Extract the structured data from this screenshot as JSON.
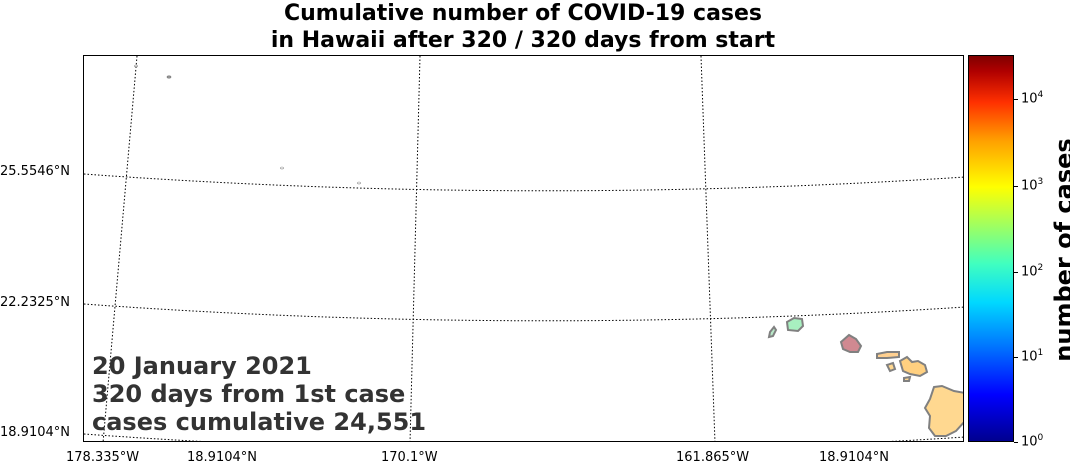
{
  "title": {
    "line1": "Cumulative number of COVID-19 cases",
    "line2": "in Hawaii after 320 / 320 days from start"
  },
  "overlay": {
    "date": "20 January 2021",
    "days": "320 days from 1st case",
    "cases": "cases cumulative 24,551"
  },
  "lat_labels": [
    "25.5546°N",
    "22.2325°N",
    "18.9104°N"
  ],
  "lon_labels": [
    "178.335°W",
    "18.9104°N",
    "170.1°W",
    "161.865°W",
    "18.9104°N"
  ],
  "colorbar": {
    "title": "number of cases",
    "ticks": [
      {
        "base": "10",
        "exp": "4"
      },
      {
        "base": "10",
        "exp": "3"
      },
      {
        "base": "10",
        "exp": "2"
      },
      {
        "base": "10",
        "exp": "1"
      },
      {
        "base": "10",
        "exp": "0"
      }
    ],
    "colormap": "jet",
    "scale": "log",
    "range": [
      1,
      30000
    ]
  },
  "colors": {
    "oahu": "#b03a48",
    "kauai": "#a8f0c0",
    "niihau": "#b8e8c8",
    "maui": "#ffd080",
    "molokai": "#ffd090",
    "lanai": "#ffd890",
    "hawaii": "#ffd890",
    "outline": "#808080"
  }
}
